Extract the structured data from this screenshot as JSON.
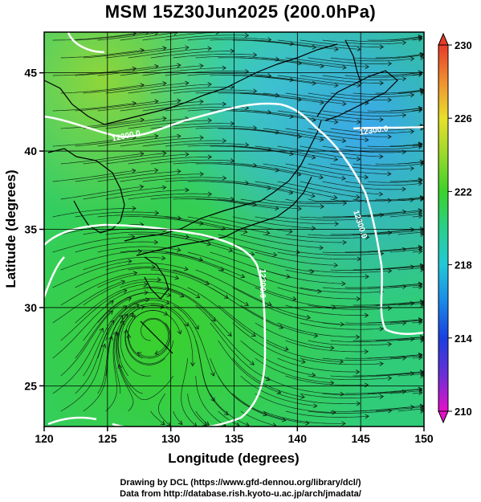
{
  "title": "MSM 15Z30Jun2025 (200.0hPa)",
  "axes": {
    "xlabel": "Longitude (degrees)",
    "ylabel": "Latitude  (degrees)",
    "xlim": [
      120,
      150
    ],
    "ylim": [
      22.4,
      47.6
    ],
    "xticks": [
      "120",
      "125",
      "130",
      "135",
      "140",
      "145",
      "150"
    ],
    "yticks": [
      "25",
      "30",
      "35",
      "40",
      "45"
    ]
  },
  "colorbar": {
    "min": 210,
    "max": 230,
    "labels": [
      "210",
      "214",
      "218",
      "222",
      "226",
      "230"
    ]
  },
  "contours": {
    "label": "12300.0"
  },
  "credit": {
    "line1": "Drawing by DCL (https://www.gfd-dennou.org/library/dcl/)",
    "line2": "Data from http://database.rish.kyoto-u.ac.jp/arch/jmadata/"
  },
  "colors": {
    "green": "#2fd02f",
    "light_green": "#7ed63a",
    "cyan": "#2fc8c0",
    "blue": "#35a8e8",
    "contour": "#ffffff"
  }
}
